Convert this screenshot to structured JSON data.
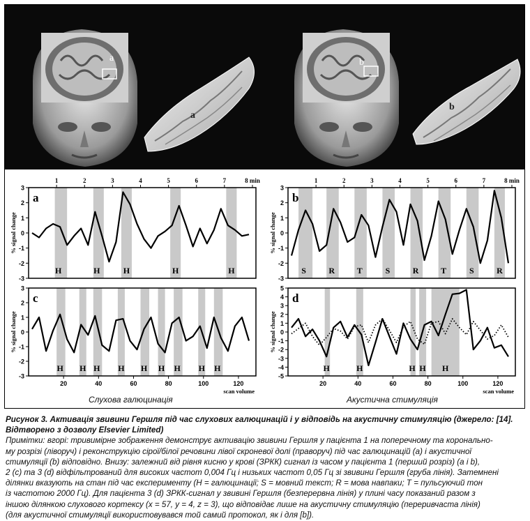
{
  "top_images": {
    "left": {
      "head_letter": "a",
      "surface_letter": "a"
    },
    "right": {
      "head_letter": "b",
      "surface_letter": "b"
    }
  },
  "chart_data": [
    {
      "type": "line",
      "panel": "a",
      "ylabel": "% signal change",
      "ylim": [
        -3,
        3
      ],
      "yticks": [
        "3",
        "2",
        "1",
        "0",
        "-1",
        "-2",
        "-3"
      ],
      "minute_ticks": [
        "1",
        "2",
        "3",
        "4",
        "5",
        "6",
        "7",
        "8 min"
      ],
      "x": [
        2,
        6,
        10,
        14,
        18,
        22,
        26,
        30,
        34,
        38,
        42,
        46,
        50,
        54,
        58,
        62,
        66,
        70,
        74,
        78,
        82,
        86,
        90,
        94,
        98,
        102,
        106,
        110,
        114,
        118,
        122,
        126
      ],
      "values": [
        0.0,
        -0.3,
        0.3,
        0.6,
        0.4,
        -0.8,
        -0.2,
        0.3,
        -0.8,
        1.4,
        -0.2,
        -1.9,
        -0.6,
        2.7,
        1.9,
        0.6,
        -0.4,
        -1.0,
        -0.2,
        0.1,
        0.5,
        1.8,
        0.5,
        -0.9,
        0.3,
        -0.7,
        0.2,
        1.6,
        0.5,
        0.2,
        -0.2,
        -0.1
      ],
      "shaded": [
        [
          15,
          22
        ],
        [
          37,
          43
        ],
        [
          53,
          59
        ],
        [
          81,
          87
        ],
        [
          113,
          119
        ]
      ],
      "state_labels": [
        {
          "label": "H",
          "x": 17
        },
        {
          "label": "H",
          "x": 39
        },
        {
          "label": "H",
          "x": 56
        },
        {
          "label": "H",
          "x": 84
        },
        {
          "label": "H",
          "x": 116
        }
      ]
    },
    {
      "type": "line",
      "panel": "b",
      "ylabel": "% signal change",
      "ylim": [
        -3,
        3
      ],
      "yticks": [
        "3",
        "2",
        "1",
        "0",
        "-1",
        "-2",
        "-3"
      ],
      "minute_ticks": [
        "1",
        "2",
        "3",
        "4",
        "5",
        "6",
        "7",
        "8 min"
      ],
      "x": [
        2,
        6,
        10,
        14,
        18,
        22,
        26,
        30,
        34,
        38,
        42,
        46,
        50,
        54,
        58,
        62,
        66,
        70,
        74,
        78,
        82,
        86,
        90,
        94,
        98,
        102,
        106,
        110,
        114,
        118,
        122,
        126
      ],
      "values": [
        -1.5,
        0.2,
        1.5,
        0.6,
        -1.2,
        -0.8,
        1.6,
        0.7,
        -0.6,
        -0.3,
        1.2,
        0.5,
        -1.6,
        0.4,
        2.2,
        1.4,
        -0.8,
        1.9,
        0.8,
        -1.8,
        -0.2,
        2.1,
        0.9,
        -1.4,
        0.2,
        1.6,
        0.4,
        -2.0,
        -0.5,
        2.8,
        1.0,
        -2.0
      ],
      "shaded": [
        [
          6,
          14
        ],
        [
          22,
          29
        ],
        [
          38,
          45
        ],
        [
          54,
          61
        ],
        [
          70,
          77
        ],
        [
          86,
          93
        ],
        [
          102,
          109
        ],
        [
          118,
          124
        ]
      ],
      "state_labels": [
        {
          "label": "S",
          "x": 9
        },
        {
          "label": "R",
          "x": 25
        },
        {
          "label": "T",
          "x": 41
        },
        {
          "label": "S",
          "x": 57
        },
        {
          "label": "R",
          "x": 73
        },
        {
          "label": "T",
          "x": 89
        },
        {
          "label": "S",
          "x": 105
        },
        {
          "label": "R",
          "x": 121
        }
      ]
    },
    {
      "type": "line",
      "panel": "c",
      "ylabel": "% signal change",
      "ylim": [
        -3,
        3
      ],
      "yticks": [
        "3",
        "2",
        "1",
        "0",
        "-1",
        "-2",
        "-3"
      ],
      "xlabel": "scan volume",
      "xticks": [
        "20",
        "40",
        "60",
        "80",
        "100",
        "120"
      ],
      "x": [
        2,
        6,
        10,
        14,
        18,
        22,
        26,
        30,
        34,
        38,
        42,
        46,
        50,
        54,
        58,
        62,
        66,
        70,
        74,
        78,
        82,
        86,
        90,
        94,
        98,
        102,
        106,
        110,
        114,
        118,
        122,
        126
      ],
      "values": [
        0.2,
        1.0,
        -1.3,
        0.1,
        1.2,
        -0.5,
        -1.4,
        0.5,
        -0.2,
        1.1,
        -0.9,
        -1.3,
        0.8,
        0.9,
        -0.6,
        -1.2,
        0.2,
        1.0,
        -0.8,
        -1.4,
        0.6,
        1.0,
        -0.6,
        -0.3,
        0.4,
        -1.1,
        1.0,
        -0.4,
        -1.3,
        0.4,
        1.0,
        -0.6
      ],
      "shaded": [
        [
          16,
          21
        ],
        [
          29,
          33
        ],
        [
          37,
          42
        ],
        [
          51,
          55
        ],
        [
          64,
          69
        ],
        [
          74,
          78
        ],
        [
          83,
          88
        ],
        [
          97,
          101
        ],
        [
          106,
          111
        ]
      ],
      "state_labels": [
        {
          "label": "H",
          "x": 18
        },
        {
          "label": "H",
          "x": 31
        },
        {
          "label": "H",
          "x": 39
        },
        {
          "label": "H",
          "x": 53
        },
        {
          "label": "H",
          "x": 66
        },
        {
          "label": "H",
          "x": 76
        },
        {
          "label": "H",
          "x": 85
        },
        {
          "label": "H",
          "x": 99
        },
        {
          "label": "H",
          "x": 108
        }
      ]
    },
    {
      "type": "line",
      "panel": "d",
      "ylabel": "% signal change",
      "ylim": [
        -5,
        5
      ],
      "yticks": [
        "5",
        "4",
        "3",
        "2",
        "1",
        "0",
        "-1",
        "-2",
        "-3",
        "-4",
        "-5"
      ],
      "xlabel": "scan volume",
      "xticks": [
        "20",
        "40",
        "60",
        "80",
        "100",
        "120"
      ],
      "x": [
        2,
        6,
        10,
        14,
        18,
        22,
        26,
        30,
        34,
        38,
        42,
        46,
        50,
        54,
        58,
        62,
        66,
        70,
        74,
        78,
        82,
        86,
        90,
        94,
        98,
        102,
        106,
        110,
        114,
        118,
        122,
        126
      ],
      "series": [
        {
          "style": "solid",
          "values": [
            0.5,
            1.5,
            -0.5,
            0.3,
            -1.0,
            -2.8,
            0.5,
            1.2,
            -0.6,
            0.8,
            -0.3,
            -3.8,
            -1.2,
            1.5,
            -0.5,
            -2.5,
            1.0,
            -0.8,
            -2.0,
            0.8,
            1.2,
            -0.4,
            2.0,
            4.3,
            4.4,
            4.8,
            -2.0,
            -1.0,
            0.5,
            -1.8,
            -1.5,
            -2.8
          ]
        },
        {
          "style": "dotted",
          "values": [
            -0.2,
            0.4,
            1.0,
            -0.5,
            -1.5,
            -0.6,
            0.4,
            0.1,
            -0.8,
            0.6,
            0.8,
            -1.2,
            0.8,
            1.5,
            0.2,
            -1.2,
            0.6,
            1.2,
            -0.8,
            -1.4,
            1.0,
            1.2,
            -0.2,
            1.5,
            0.5,
            -0.3,
            1.2,
            0.2,
            -0.8,
            -0.4,
            0.8,
            -0.6
          ]
        }
      ],
      "shaded": [
        [
          21,
          24
        ],
        [
          39,
          43
        ],
        [
          70,
          73
        ],
        [
          75,
          79
        ],
        [
          82,
          98
        ]
      ],
      "state_labels": [
        {
          "label": "H",
          "x": 22
        },
        {
          "label": "H",
          "x": 41
        },
        {
          "label": "H",
          "x": 71
        },
        {
          "label": "H",
          "x": 77
        },
        {
          "label": "H",
          "x": 90
        }
      ]
    }
  ],
  "section_labels": {
    "left": "Слухова галюцинація",
    "right": "Акустична стимуляція"
  },
  "caption": {
    "line1": "Рисунок 3. Активація звивини Гершля під час слухових галюцинацій і у відповідь на акустичну стимуляцію (джерело: [14].",
    "line2": "Відтворено з дозволу Elsevier Limited)",
    "notes": [
      "Примітки: вгорі: тривимірне зображення демонструє активацію звивини Гершля у пацієнта 1 на поперечному та коронально-",
      "му розрізі (ліворуч) і реконструкцію сірої/білої речовини лівої скроневої долі (праворуч) під час галюцинацій (a) і акустичної",
      "стимуляції (b) відповідно. Внизу: залежний від рівня кисню у крові (ЗРКК) сигнал із часом у пацієнта 1 (перший розріз) (a і b),",
      "2 (c) та 3 (d) відфільтрований для високих частот 0,004 Гц і низьких частот 0,05 Гц зі звивини Гершля (груба лінія). Затемнені",
      "ділянки вказують на стан під час експерименту (H = галюцинації; S = мовний текст; R = мова навпаки; T = пульсуючий тон",
      "із частотою 2000 Гц). Для пацієнта 3 (d) ЗРКК-сигнал у звивині Гершля (безперервна лінія) у плині часу показаний разом з",
      "іншою ділянкою слухового кортексу (x = 57, y = 4, z = 3), що відповідає лише на акустичну стимуляцію (переривчаста лінія)",
      "(для акустичної стимуляції використовувався той самий протокол, як і для [b])."
    ]
  }
}
